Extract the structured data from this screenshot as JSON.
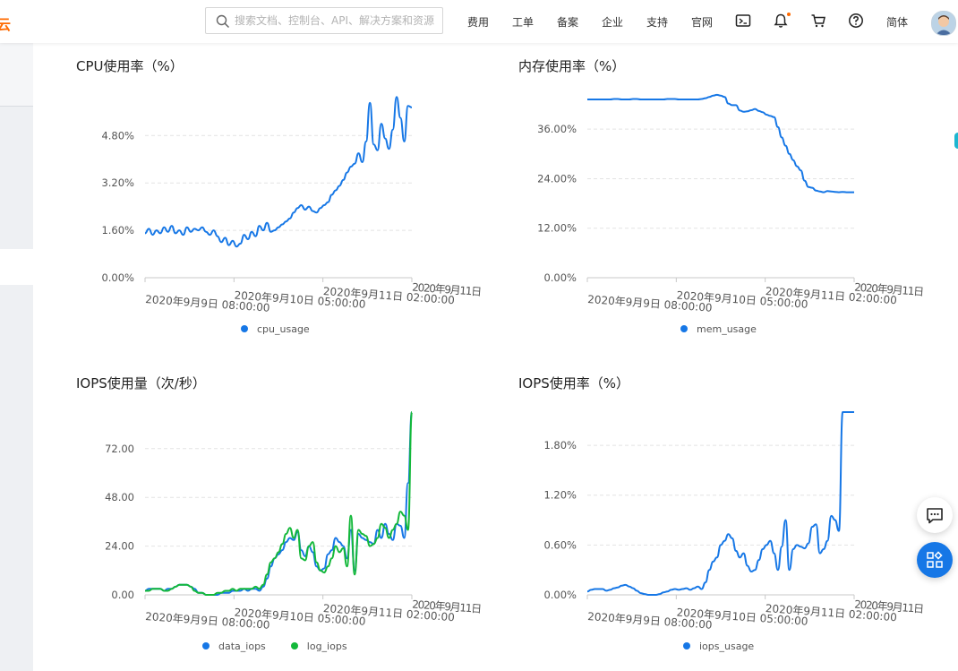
{
  "header": {
    "search": {
      "placeholder": "搜索文档、控制台、API、解决方案和资源",
      "icon": "search-icon"
    },
    "nav": {
      "fees": "费用",
      "tickets": "工单",
      "icp": "备案",
      "enterprise": "企业",
      "support": "支持",
      "official": "官网",
      "language": "简体"
    },
    "icons": [
      "terminal-icon",
      "bell-icon",
      "cart-icon",
      "help-icon",
      "avatar"
    ],
    "logo_fragment": "云"
  },
  "colors": {
    "blue": "#1677e6",
    "green": "#13b83a",
    "accent": "#ff6a00"
  },
  "x_tick_labels": [
    "2020年9月9日 08:00:00",
    "2020年9月10日 05:00:00",
    "2020年9月11日 02:00:00",
    "2020年9月11日"
  ],
  "chart_data": [
    {
      "type": "line",
      "title": "CPU使用率（%）",
      "y_tick_labels": [
        "0.00%",
        "1.60%",
        "3.20%",
        "4.80%"
      ],
      "ylim": [
        0,
        6.2
      ],
      "series": [
        {
          "name": "cpu_usage",
          "color": "#1677e6",
          "values": [
            1.5,
            1.65,
            1.45,
            1.6,
            1.5,
            1.7,
            1.55,
            1.75,
            1.5,
            1.6,
            1.45,
            1.7,
            1.55,
            1.65,
            1.6,
            1.7,
            1.55,
            1.45,
            1.6,
            1.4,
            1.2,
            1.35,
            1.1,
            1.25,
            1.05,
            1.15,
            1.45,
            1.3,
            1.55,
            1.4,
            1.75,
            1.6,
            1.85,
            1.55,
            1.6,
            1.7,
            1.8,
            1.9,
            2.0,
            2.2,
            2.35,
            2.45,
            2.3,
            2.4,
            2.25,
            2.2,
            2.35,
            2.45,
            2.55,
            2.8,
            2.95,
            3.1,
            3.3,
            3.55,
            3.75,
            3.85,
            4.2,
            3.9,
            4.6,
            5.9,
            4.5,
            4.3,
            5.2,
            4.7,
            4.35,
            5.0,
            6.1,
            5.4,
            4.6,
            5.8,
            5.75
          ]
        }
      ]
    },
    {
      "type": "line",
      "title": "内存使用率（%）",
      "y_tick_labels": [
        "0.00%",
        "12.00%",
        "24.00%",
        "36.00%"
      ],
      "ylim": [
        0,
        44.5
      ],
      "series": [
        {
          "name": "mem_usage",
          "color": "#1677e6",
          "values": [
            43.2,
            43.2,
            43.2,
            43.2,
            43.2,
            43.2,
            43.2,
            43.3,
            43.3,
            43.2,
            43.2,
            43.2,
            43.3,
            43.3,
            43.2,
            43.2,
            43.2,
            43.2,
            43.2,
            43.2,
            43.2,
            43.3,
            43.3,
            43.3,
            43.2,
            43.2,
            43.2,
            43.2,
            43.2,
            43.2,
            43.3,
            43.5,
            43.8,
            44.1,
            44.3,
            44.1,
            43.8,
            42.2,
            41.8,
            41.8,
            40.5,
            40.2,
            40.3,
            40.6,
            40.9,
            40.4,
            40.1,
            39.5,
            39.2,
            38.9,
            36.5,
            34.0,
            32.0,
            30.0,
            28.5,
            27.0,
            26.0,
            23.5,
            22.0,
            21.8,
            21.1,
            20.9,
            20.7,
            21.0,
            20.9,
            20.8,
            20.7,
            20.8,
            20.7,
            20.7,
            20.7
          ]
        }
      ]
    },
    {
      "type": "line",
      "title": "IOPS使用量（次/秒）",
      "y_tick_labels": [
        "0.00",
        "24.00",
        "48.00",
        "72.00"
      ],
      "ylim": [
        0,
        90
      ],
      "series": [
        {
          "name": "data_iops",
          "color": "#1677e6",
          "values": [
            2,
            3,
            3,
            3,
            3,
            2,
            3,
            3,
            4,
            5,
            5,
            5,
            4,
            3,
            1,
            1,
            0,
            0,
            0,
            0,
            1,
            1,
            1,
            2,
            2,
            2,
            3,
            2,
            3,
            3,
            2,
            4,
            8,
            14,
            18,
            20,
            22,
            26,
            28,
            27,
            31,
            22,
            19,
            24,
            21,
            14,
            12,
            13,
            20,
            22,
            28,
            26,
            24,
            18,
            32,
            12,
            30,
            28,
            27,
            26,
            25,
            32,
            28,
            35,
            30,
            27,
            35,
            34,
            28,
            55,
            90
          ]
        },
        {
          "name": "log_iops",
          "color": "#13b83a",
          "values": [
            2,
            2,
            3,
            3,
            3,
            2,
            2,
            3,
            4,
            5,
            5,
            5,
            4,
            2,
            1,
            1,
            0,
            0,
            0,
            1,
            1,
            2,
            2,
            3,
            2,
            3,
            3,
            3,
            3,
            4,
            3,
            5,
            10,
            16,
            18,
            21,
            25,
            30,
            33,
            28,
            32,
            18,
            17,
            24,
            26,
            16,
            12,
            11,
            14,
            18,
            24,
            21,
            23,
            14,
            39,
            10,
            32,
            30,
            29,
            24,
            25,
            28,
            35,
            33,
            28,
            32,
            35,
            41,
            39,
            32,
            90
          ]
        }
      ]
    },
    {
      "type": "line",
      "title": "IOPS使用率（%）",
      "y_tick_labels": [
        "0.00%",
        "0.60%",
        "1.20%",
        "1.80%"
      ],
      "ylim": [
        0,
        2.2
      ],
      "series": [
        {
          "name": "iops_usage",
          "color": "#1677e6",
          "values": [
            0.04,
            0.06,
            0.07,
            0.07,
            0.07,
            0.05,
            0.06,
            0.08,
            0.09,
            0.11,
            0.12,
            0.1,
            0.08,
            0.05,
            0.02,
            0.01,
            0.0,
            0.0,
            0.0,
            0.01,
            0.03,
            0.04,
            0.06,
            0.07,
            0.06,
            0.07,
            0.08,
            0.06,
            0.08,
            0.1,
            0.07,
            0.15,
            0.3,
            0.4,
            0.45,
            0.6,
            0.65,
            0.73,
            0.68,
            0.53,
            0.45,
            0.5,
            0.35,
            0.28,
            0.3,
            0.42,
            0.55,
            0.6,
            0.65,
            0.5,
            0.3,
            0.58,
            0.9,
            0.3,
            0.55,
            0.6,
            0.58,
            0.56,
            0.62,
            0.82,
            0.85,
            0.5,
            0.55,
            0.65,
            0.95,
            0.9,
            0.77,
            2.2,
            2.2,
            2.2,
            2.2
          ]
        }
      ]
    }
  ]
}
